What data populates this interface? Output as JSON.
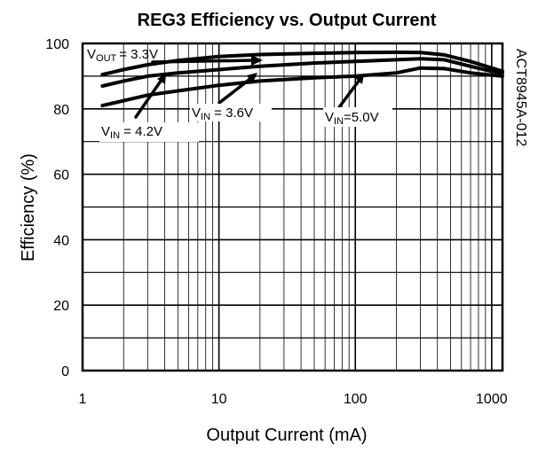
{
  "chart_data": {
    "type": "line",
    "title": "REG3 Efficiency vs. Output Current",
    "xlabel": "Output Current (mA)",
    "ylabel": "Efficiency (%)",
    "side_label": "ACT8945A-012",
    "x_scale": "log",
    "xlim": [
      1,
      1200
    ],
    "ylim": [
      0,
      100
    ],
    "grid": true,
    "x_ticks": [
      {
        "value": 1,
        "label": "1"
      },
      {
        "value": 10,
        "label": "10"
      },
      {
        "value": 100,
        "label": "100"
      },
      {
        "value": 1000,
        "label": "1000"
      }
    ],
    "y_ticks": [
      {
        "value": 0,
        "label": "0"
      },
      {
        "value": 20,
        "label": "20"
      },
      {
        "value": 40,
        "label": "40"
      },
      {
        "value": 60,
        "label": "60"
      },
      {
        "value": 80,
        "label": "80"
      },
      {
        "value": 100,
        "label": "100"
      }
    ],
    "series": [
      {
        "name": "VIN = 3.6V",
        "color": "#000000",
        "x": [
          1.4,
          2,
          3,
          5,
          10,
          20,
          50,
          100,
          200,
          300,
          450,
          700,
          1000,
          1200
        ],
        "y": [
          90.5,
          92.0,
          93.5,
          94.8,
          96.0,
          96.6,
          97.0,
          97.2,
          97.3,
          97.2,
          96.5,
          94.5,
          92.5,
          91.5
        ]
      },
      {
        "name": "VIN = 4.2V",
        "color": "#000000",
        "x": [
          1.4,
          2,
          3,
          5,
          10,
          20,
          50,
          100,
          200,
          300,
          450,
          700,
          1000,
          1200
        ],
        "y": [
          87.0,
          88.5,
          90.0,
          91.0,
          92.0,
          93.0,
          94.0,
          94.5,
          95.0,
          95.3,
          95.0,
          93.0,
          91.5,
          91.0
        ]
      },
      {
        "name": "VIN=5.0V",
        "color": "#000000",
        "x": [
          1.4,
          2,
          3,
          5,
          10,
          20,
          50,
          100,
          200,
          300,
          450,
          700,
          1000,
          1200
        ],
        "y": [
          81.0,
          82.5,
          84.2,
          85.5,
          87.2,
          88.5,
          89.5,
          90.0,
          91.0,
          92.5,
          92.3,
          91.0,
          90.3,
          90.0
        ]
      }
    ],
    "annotations": [
      {
        "id": "vout",
        "text": "= 3.3V",
        "symbol": "V",
        "subscript": "OUT"
      },
      {
        "id": "vin36",
        "text": " = 3.6V",
        "symbol": "V",
        "subscript": "IN"
      },
      {
        "id": "vin42",
        "text": " = 4.2V",
        "symbol": "V",
        "subscript": "IN"
      },
      {
        "id": "vin50",
        "text": "=5.0V",
        "symbol": "V",
        "subscript": "IN"
      }
    ]
  }
}
